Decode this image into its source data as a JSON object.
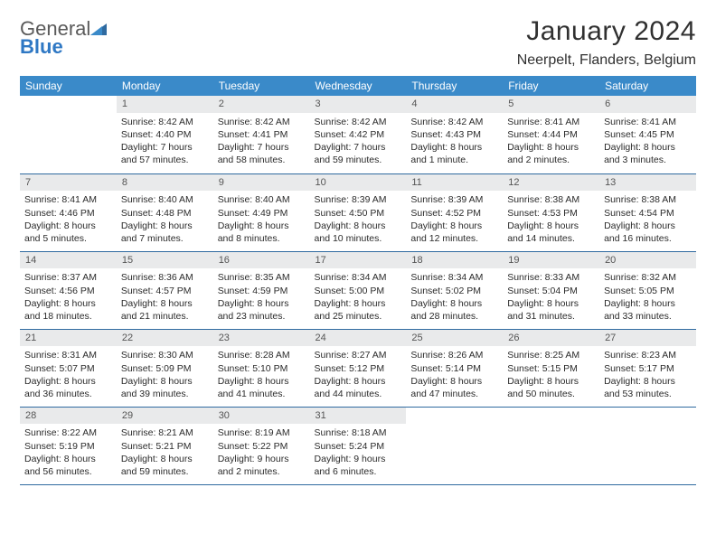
{
  "logo": {
    "text1": "General",
    "text2": "Blue"
  },
  "title": "January 2024",
  "location": "Neerpelt, Flanders, Belgium",
  "weekdays": [
    "Sunday",
    "Monday",
    "Tuesday",
    "Wednesday",
    "Thursday",
    "Friday",
    "Saturday"
  ],
  "colors": {
    "header_bg": "#3a8ac9",
    "header_text": "#ffffff",
    "daynum_bg": "#e9eaeb",
    "border": "#2f6aa0",
    "title_color": "#303030",
    "body_text": "#2b2b2b"
  },
  "fonts": {
    "title_size": 30,
    "location_size": 16,
    "weekday_size": 12,
    "cell_size": 10.5
  },
  "weeks": [
    [
      {
        "n": "",
        "lines": [
          "",
          "",
          "",
          ""
        ]
      },
      {
        "n": "1",
        "lines": [
          "Sunrise: 8:42 AM",
          "Sunset: 4:40 PM",
          "Daylight: 7 hours",
          "and 57 minutes."
        ]
      },
      {
        "n": "2",
        "lines": [
          "Sunrise: 8:42 AM",
          "Sunset: 4:41 PM",
          "Daylight: 7 hours",
          "and 58 minutes."
        ]
      },
      {
        "n": "3",
        "lines": [
          "Sunrise: 8:42 AM",
          "Sunset: 4:42 PM",
          "Daylight: 7 hours",
          "and 59 minutes."
        ]
      },
      {
        "n": "4",
        "lines": [
          "Sunrise: 8:42 AM",
          "Sunset: 4:43 PM",
          "Daylight: 8 hours",
          "and 1 minute."
        ]
      },
      {
        "n": "5",
        "lines": [
          "Sunrise: 8:41 AM",
          "Sunset: 4:44 PM",
          "Daylight: 8 hours",
          "and 2 minutes."
        ]
      },
      {
        "n": "6",
        "lines": [
          "Sunrise: 8:41 AM",
          "Sunset: 4:45 PM",
          "Daylight: 8 hours",
          "and 3 minutes."
        ]
      }
    ],
    [
      {
        "n": "7",
        "lines": [
          "Sunrise: 8:41 AM",
          "Sunset: 4:46 PM",
          "Daylight: 8 hours",
          "and 5 minutes."
        ]
      },
      {
        "n": "8",
        "lines": [
          "Sunrise: 8:40 AM",
          "Sunset: 4:48 PM",
          "Daylight: 8 hours",
          "and 7 minutes."
        ]
      },
      {
        "n": "9",
        "lines": [
          "Sunrise: 8:40 AM",
          "Sunset: 4:49 PM",
          "Daylight: 8 hours",
          "and 8 minutes."
        ]
      },
      {
        "n": "10",
        "lines": [
          "Sunrise: 8:39 AM",
          "Sunset: 4:50 PM",
          "Daylight: 8 hours",
          "and 10 minutes."
        ]
      },
      {
        "n": "11",
        "lines": [
          "Sunrise: 8:39 AM",
          "Sunset: 4:52 PM",
          "Daylight: 8 hours",
          "and 12 minutes."
        ]
      },
      {
        "n": "12",
        "lines": [
          "Sunrise: 8:38 AM",
          "Sunset: 4:53 PM",
          "Daylight: 8 hours",
          "and 14 minutes."
        ]
      },
      {
        "n": "13",
        "lines": [
          "Sunrise: 8:38 AM",
          "Sunset: 4:54 PM",
          "Daylight: 8 hours",
          "and 16 minutes."
        ]
      }
    ],
    [
      {
        "n": "14",
        "lines": [
          "Sunrise: 8:37 AM",
          "Sunset: 4:56 PM",
          "Daylight: 8 hours",
          "and 18 minutes."
        ]
      },
      {
        "n": "15",
        "lines": [
          "Sunrise: 8:36 AM",
          "Sunset: 4:57 PM",
          "Daylight: 8 hours",
          "and 21 minutes."
        ]
      },
      {
        "n": "16",
        "lines": [
          "Sunrise: 8:35 AM",
          "Sunset: 4:59 PM",
          "Daylight: 8 hours",
          "and 23 minutes."
        ]
      },
      {
        "n": "17",
        "lines": [
          "Sunrise: 8:34 AM",
          "Sunset: 5:00 PM",
          "Daylight: 8 hours",
          "and 25 minutes."
        ]
      },
      {
        "n": "18",
        "lines": [
          "Sunrise: 8:34 AM",
          "Sunset: 5:02 PM",
          "Daylight: 8 hours",
          "and 28 minutes."
        ]
      },
      {
        "n": "19",
        "lines": [
          "Sunrise: 8:33 AM",
          "Sunset: 5:04 PM",
          "Daylight: 8 hours",
          "and 31 minutes."
        ]
      },
      {
        "n": "20",
        "lines": [
          "Sunrise: 8:32 AM",
          "Sunset: 5:05 PM",
          "Daylight: 8 hours",
          "and 33 minutes."
        ]
      }
    ],
    [
      {
        "n": "21",
        "lines": [
          "Sunrise: 8:31 AM",
          "Sunset: 5:07 PM",
          "Daylight: 8 hours",
          "and 36 minutes."
        ]
      },
      {
        "n": "22",
        "lines": [
          "Sunrise: 8:30 AM",
          "Sunset: 5:09 PM",
          "Daylight: 8 hours",
          "and 39 minutes."
        ]
      },
      {
        "n": "23",
        "lines": [
          "Sunrise: 8:28 AM",
          "Sunset: 5:10 PM",
          "Daylight: 8 hours",
          "and 41 minutes."
        ]
      },
      {
        "n": "24",
        "lines": [
          "Sunrise: 8:27 AM",
          "Sunset: 5:12 PM",
          "Daylight: 8 hours",
          "and 44 minutes."
        ]
      },
      {
        "n": "25",
        "lines": [
          "Sunrise: 8:26 AM",
          "Sunset: 5:14 PM",
          "Daylight: 8 hours",
          "and 47 minutes."
        ]
      },
      {
        "n": "26",
        "lines": [
          "Sunrise: 8:25 AM",
          "Sunset: 5:15 PM",
          "Daylight: 8 hours",
          "and 50 minutes."
        ]
      },
      {
        "n": "27",
        "lines": [
          "Sunrise: 8:23 AM",
          "Sunset: 5:17 PM",
          "Daylight: 8 hours",
          "and 53 minutes."
        ]
      }
    ],
    [
      {
        "n": "28",
        "lines": [
          "Sunrise: 8:22 AM",
          "Sunset: 5:19 PM",
          "Daylight: 8 hours",
          "and 56 minutes."
        ]
      },
      {
        "n": "29",
        "lines": [
          "Sunrise: 8:21 AM",
          "Sunset: 5:21 PM",
          "Daylight: 8 hours",
          "and 59 minutes."
        ]
      },
      {
        "n": "30",
        "lines": [
          "Sunrise: 8:19 AM",
          "Sunset: 5:22 PM",
          "Daylight: 9 hours",
          "and 2 minutes."
        ]
      },
      {
        "n": "31",
        "lines": [
          "Sunrise: 8:18 AM",
          "Sunset: 5:24 PM",
          "Daylight: 9 hours",
          "and 6 minutes."
        ]
      },
      {
        "n": "",
        "lines": [
          "",
          "",
          "",
          ""
        ]
      },
      {
        "n": "",
        "lines": [
          "",
          "",
          "",
          ""
        ]
      },
      {
        "n": "",
        "lines": [
          "",
          "",
          "",
          ""
        ]
      }
    ]
  ]
}
